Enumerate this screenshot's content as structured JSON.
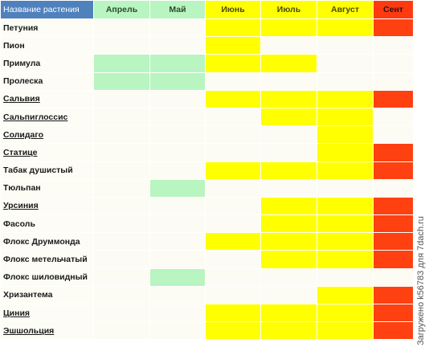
{
  "header": {
    "name": "Название растения",
    "months": [
      "Апрель",
      "Май",
      "Июнь",
      "Июль",
      "Август",
      "Сент"
    ]
  },
  "colors": {
    "green": "#b8f5c0",
    "yellow": "#ffff00",
    "red": "#ff4010",
    "header_blue": "#4f81bd"
  },
  "rows": [
    {
      "name": "Петуния",
      "underline": false,
      "cells": [
        "",
        "",
        "yellow",
        "yellow",
        "yellow",
        "red"
      ]
    },
    {
      "name": "Пион",
      "underline": false,
      "cells": [
        "",
        "",
        "yellow",
        "",
        "",
        ""
      ]
    },
    {
      "name": "Примула",
      "underline": false,
      "cells": [
        "green",
        "green",
        "yellow",
        "yellow",
        "",
        ""
      ]
    },
    {
      "name": "Пролеска",
      "underline": false,
      "cells": [
        "green",
        "green",
        "",
        "",
        "",
        ""
      ]
    },
    {
      "name": "Сальвия",
      "underline": true,
      "cells": [
        "",
        "",
        "yellow",
        "yellow",
        "yellow",
        "red"
      ]
    },
    {
      "name": "Сальпиглоссис",
      "underline": true,
      "cells": [
        "",
        "",
        "",
        "yellow",
        "yellow",
        ""
      ]
    },
    {
      "name": "Солидаго",
      "underline": true,
      "cells": [
        "",
        "",
        "",
        "",
        "yellow",
        ""
      ]
    },
    {
      "name": "Статице",
      "underline": true,
      "cells": [
        "",
        "",
        "",
        "",
        "yellow",
        "red"
      ]
    },
    {
      "name": "Табак душистый",
      "underline": false,
      "cells": [
        "",
        "",
        "yellow",
        "yellow",
        "yellow",
        "red"
      ]
    },
    {
      "name": "Тюльпан",
      "underline": false,
      "cells": [
        "",
        "green",
        "",
        "",
        "",
        ""
      ]
    },
    {
      "name": "Урсиния",
      "underline": true,
      "cells": [
        "",
        "",
        "",
        "yellow",
        "yellow",
        "red"
      ]
    },
    {
      "name": "Фасоль",
      "underline": false,
      "cells": [
        "",
        "",
        "",
        "yellow",
        "yellow",
        "red"
      ]
    },
    {
      "name": "Флокс Друммонда",
      "underline": false,
      "cells": [
        "",
        "",
        "yellow",
        "yellow",
        "yellow",
        "red"
      ]
    },
    {
      "name": "Флокс метельчатый",
      "underline": false,
      "cells": [
        "",
        "",
        "",
        "yellow",
        "yellow",
        "red"
      ]
    },
    {
      "name": "Флокс шиловидный",
      "underline": false,
      "cells": [
        "",
        "green",
        "",
        "",
        "",
        ""
      ]
    },
    {
      "name": "Хризантема",
      "underline": false,
      "cells": [
        "",
        "",
        "",
        "",
        "yellow",
        "red"
      ]
    },
    {
      "name": "Циния",
      "underline": true,
      "cells": [
        "",
        "",
        "yellow",
        "yellow",
        "yellow",
        "red"
      ]
    },
    {
      "name": "Эшшольция",
      "underline": true,
      "cells": [
        "",
        "",
        "yellow",
        "yellow",
        "yellow",
        "red"
      ]
    }
  ],
  "watermark": "Загружено k56783 для 7dach.ru"
}
